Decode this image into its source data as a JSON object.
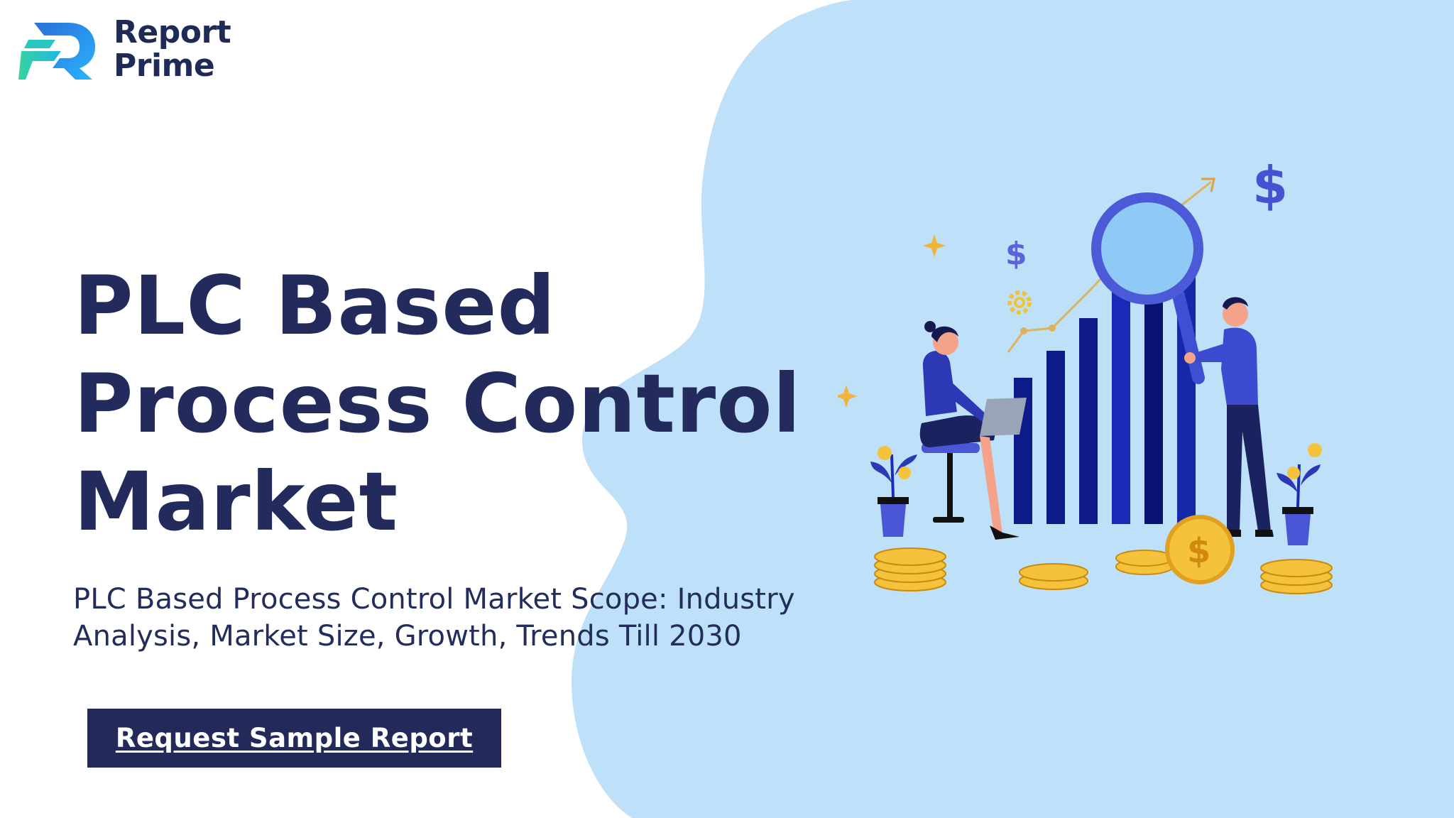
{
  "brand": {
    "name_line1": "Report",
    "name_line2": "Prime"
  },
  "hero": {
    "title_line1": "PLC Based",
    "title_line2": "Process Control",
    "title_line3": "Market",
    "subtitle_line1": "PLC Based Process Control Market Scope: Industry",
    "subtitle_line2": "Analysis, Market Size, Growth, Trends Till 2030"
  },
  "cta": {
    "label": "Request Sample Report"
  },
  "icons": {
    "logo": "report-prime-logo-icon",
    "illustration": "market-analysis-illustration"
  },
  "colors": {
    "navy": "#222b5c",
    "blob": "#bee0f9",
    "logo_blue": "#2b6fd6",
    "logo_green": "#38d39f",
    "chart_bar": "#0f1a8a",
    "coin_gold": "#f5c33b"
  }
}
